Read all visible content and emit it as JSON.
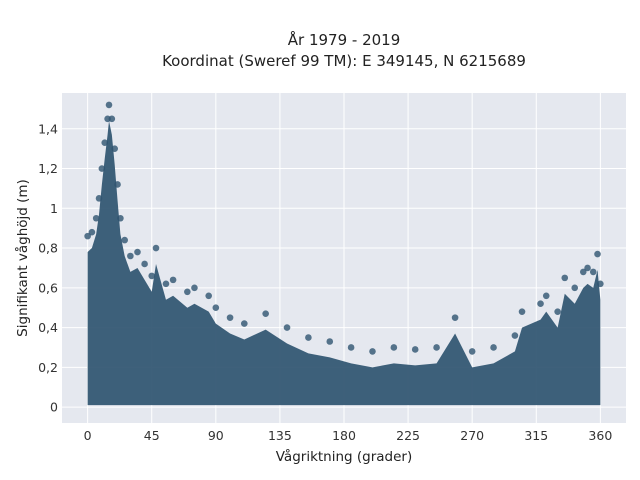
{
  "chart_data": {
    "type": "scatter",
    "title_lines": [
      "År 1979 - 2019",
      "Koordinat (Sweref 99 TM): E 349145, N 6215689"
    ],
    "xlabel": "Vågriktning (grader)",
    "ylabel": "Signifikant våghöjd (m)",
    "xlim": [
      -18,
      378
    ],
    "ylim": [
      -0.08,
      1.58
    ],
    "x_ticks": [
      0,
      45,
      90,
      135,
      180,
      225,
      270,
      315,
      360
    ],
    "x_tick_labels": [
      "0",
      "45",
      "90",
      "135",
      "180",
      "225",
      "270",
      "315",
      "360"
    ],
    "y_ticks": [
      0,
      0.2,
      0.4,
      0.6,
      0.8,
      1.0,
      1.2,
      1.4
    ],
    "y_tick_labels": [
      "0",
      "0,2",
      "0,4",
      "0,6",
      "0,8",
      "1",
      "1,2",
      "1,4"
    ],
    "grid": true,
    "marker_color": "#2f5470",
    "plot_background": "#e5e8ef",
    "envelope_note": "dense cloud of points; upper envelope approximated by points below",
    "series": [
      {
        "values": [
          {
            "x": 0,
            "y": 0.86
          },
          {
            "x": 3,
            "y": 0.88
          },
          {
            "x": 6,
            "y": 0.95
          },
          {
            "x": 8,
            "y": 1.05
          },
          {
            "x": 10,
            "y": 1.2
          },
          {
            "x": 12,
            "y": 1.33
          },
          {
            "x": 14,
            "y": 1.45
          },
          {
            "x": 15,
            "y": 1.52
          },
          {
            "x": 17,
            "y": 1.45
          },
          {
            "x": 19,
            "y": 1.3
          },
          {
            "x": 21,
            "y": 1.12
          },
          {
            "x": 23,
            "y": 0.95
          },
          {
            "x": 26,
            "y": 0.84
          },
          {
            "x": 30,
            "y": 0.76
          },
          {
            "x": 35,
            "y": 0.78
          },
          {
            "x": 40,
            "y": 0.72
          },
          {
            "x": 45,
            "y": 0.66
          },
          {
            "x": 48,
            "y": 0.8
          },
          {
            "x": 55,
            "y": 0.62
          },
          {
            "x": 60,
            "y": 0.64
          },
          {
            "x": 70,
            "y": 0.58
          },
          {
            "x": 75,
            "y": 0.6
          },
          {
            "x": 85,
            "y": 0.56
          },
          {
            "x": 90,
            "y": 0.5
          },
          {
            "x": 100,
            "y": 0.45
          },
          {
            "x": 110,
            "y": 0.42
          },
          {
            "x": 125,
            "y": 0.47
          },
          {
            "x": 140,
            "y": 0.4
          },
          {
            "x": 155,
            "y": 0.35
          },
          {
            "x": 170,
            "y": 0.33
          },
          {
            "x": 185,
            "y": 0.3
          },
          {
            "x": 200,
            "y": 0.28
          },
          {
            "x": 215,
            "y": 0.3
          },
          {
            "x": 230,
            "y": 0.29
          },
          {
            "x": 245,
            "y": 0.3
          },
          {
            "x": 258,
            "y": 0.45
          },
          {
            "x": 270,
            "y": 0.28
          },
          {
            "x": 285,
            "y": 0.3
          },
          {
            "x": 300,
            "y": 0.36
          },
          {
            "x": 305,
            "y": 0.48
          },
          {
            "x": 318,
            "y": 0.52
          },
          {
            "x": 322,
            "y": 0.56
          },
          {
            "x": 330,
            "y": 0.48
          },
          {
            "x": 335,
            "y": 0.65
          },
          {
            "x": 342,
            "y": 0.6
          },
          {
            "x": 348,
            "y": 0.68
          },
          {
            "x": 351,
            "y": 0.7
          },
          {
            "x": 355,
            "y": 0.68
          },
          {
            "x": 358,
            "y": 0.77
          },
          {
            "x": 360,
            "y": 0.62
          }
        ]
      }
    ]
  }
}
